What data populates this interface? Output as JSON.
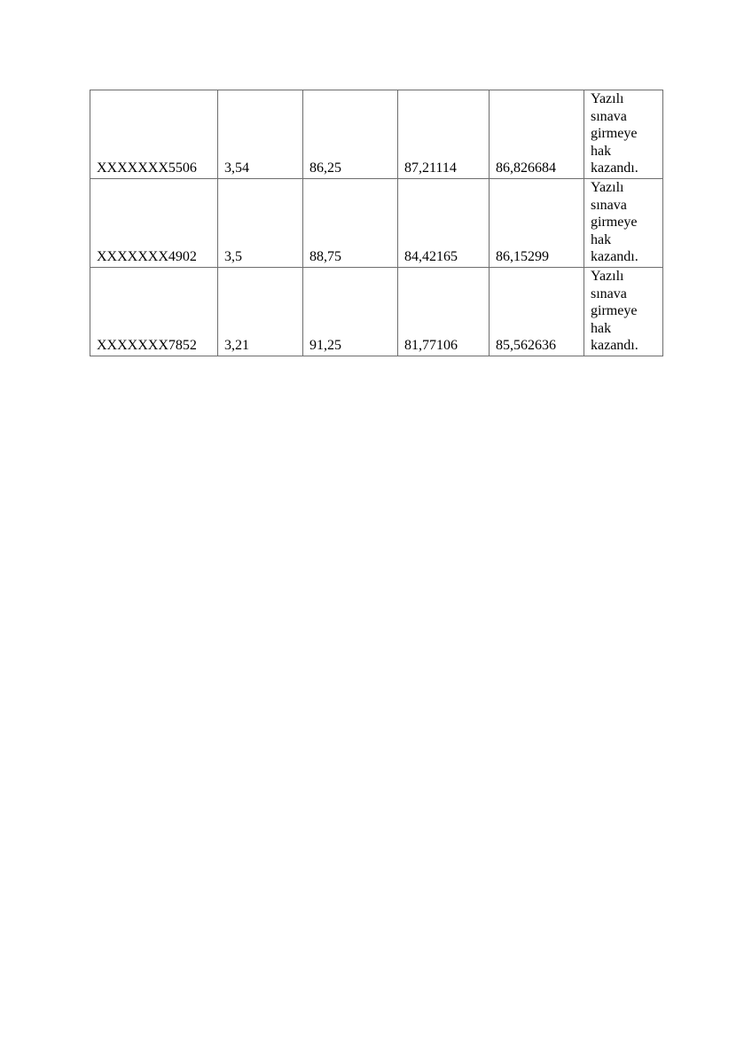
{
  "table": {
    "rows": [
      [
        "XXXXXXX5506",
        "3,54",
        "86,25",
        "87,21114",
        "86,826684",
        "Yazılı sınava girmeye hak kazandı."
      ],
      [
        "XXXXXXX4902",
        "3,5",
        "88,75",
        "84,42165",
        "86,15299",
        "Yazılı sınava girmeye hak kazandı."
      ],
      [
        "XXXXXXX7852",
        "3,21",
        "91,25",
        "81,77106",
        "85,562636",
        "Yazılı sınava girmeye hak kazandı."
      ]
    ]
  }
}
